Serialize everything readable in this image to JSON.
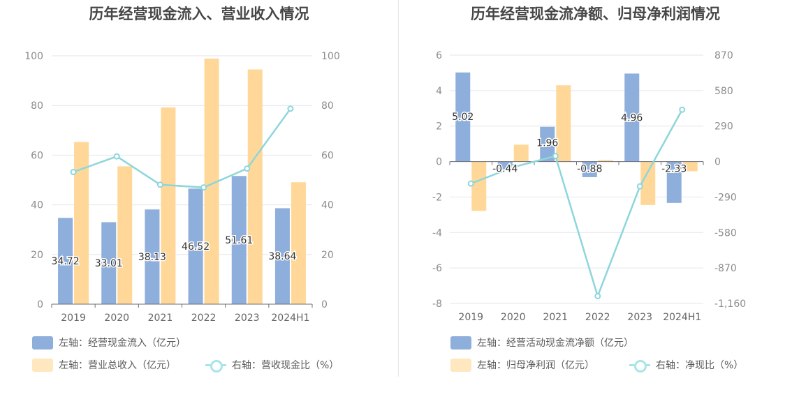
{
  "chart_data": [
    {
      "type": "bar",
      "title": "历年经营现金流入、营业收入情况",
      "categories": [
        "2019",
        "2020",
        "2021",
        "2022",
        "2023",
        "2024H1"
      ],
      "left_axis": {
        "ylim": [
          0,
          100
        ],
        "ticks": [
          "0",
          "20",
          "40",
          "60",
          "80",
          "100"
        ]
      },
      "right_axis": {
        "ylim": [
          0,
          100
        ],
        "ticks": [
          "0",
          "20",
          "40",
          "60",
          "80",
          "100"
        ]
      },
      "series": [
        {
          "name": "左轴：经营现金流入（亿元）",
          "kind": "bar",
          "axis": "left",
          "color": "#8eaedb",
          "values": [
            34.72,
            33.01,
            38.13,
            46.52,
            51.61,
            38.64
          ],
          "labels": [
            "34.72",
            "33.01",
            "38.13",
            "46.52",
            "51.61",
            "38.64"
          ]
        },
        {
          "name": "左轴：营业总收入（亿元）",
          "kind": "bar",
          "axis": "left",
          "color": "#ffd899",
          "values": [
            65.3,
            55.5,
            79.2,
            98.9,
            94.5,
            49.1
          ]
        },
        {
          "name": "右轴：营收现金比（%）",
          "kind": "line",
          "axis": "right",
          "color": "#8dd6dc",
          "values": [
            53.2,
            59.5,
            48.1,
            47.0,
            54.6,
            78.7
          ]
        }
      ],
      "grid": true,
      "legend_position": "bottom-left"
    },
    {
      "type": "bar",
      "title": "历年经营现金流净额、归母净利润情况",
      "categories": [
        "2019",
        "2020",
        "2021",
        "2022",
        "2023",
        "2024H1"
      ],
      "left_axis": {
        "ylim": [
          -8,
          6
        ],
        "ticks": [
          "-8",
          "-6",
          "-4",
          "-2",
          "0",
          "2",
          "4",
          "6"
        ]
      },
      "right_axis": {
        "ylim": [
          -1160,
          870
        ],
        "ticks": [
          "-1,160",
          "-870",
          "-580",
          "-290",
          "0",
          "290",
          "580",
          "870"
        ]
      },
      "series": [
        {
          "name": "左轴：经营活动现金流净额（亿元）",
          "kind": "bar",
          "axis": "left",
          "color": "#8eaedb",
          "values": [
            5.02,
            -0.44,
            1.96,
            -0.88,
            4.96,
            -2.33
          ],
          "labels": [
            "5.02",
            "-0.44",
            "1.96",
            "-0.88",
            "4.96",
            "-2.33"
          ]
        },
        {
          "name": "左轴：归母净利润（亿元）",
          "kind": "bar",
          "axis": "left",
          "color": "#ffd899",
          "values": [
            -2.78,
            0.95,
            4.3,
            0.08,
            -2.45,
            -0.55
          ]
        },
        {
          "name": "右轴：净现比（%）",
          "kind": "line",
          "axis": "right",
          "color": "#8dd6dc",
          "values": [
            -180,
            -46,
            45,
            -1100,
            -203,
            424
          ]
        }
      ],
      "grid": true,
      "legend_position": "bottom-left"
    }
  ]
}
